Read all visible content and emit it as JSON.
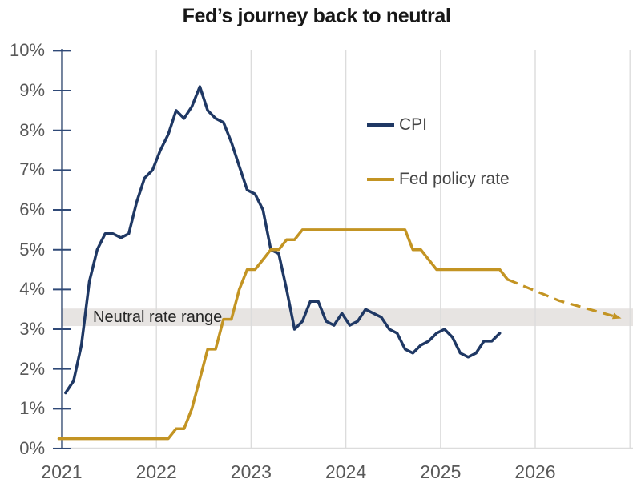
{
  "title": "Fed’s journey back to neutral",
  "legend": {
    "cpi_label": "CPI",
    "fed_label": "Fed policy rate"
  },
  "colors": {
    "cpi_line": "#1F3864",
    "fed_line": "#C39423",
    "band_fill": "#E7E4E2",
    "gridline": "#DCDCDC",
    "axis_line": "#1F3864",
    "tick_mark": "#2F4977",
    "tick_label": "#595959",
    "legend_text": "#454545",
    "band_label_text": "#262626",
    "title_text": "#171717"
  },
  "chart_data": {
    "type": "line",
    "title": "Fed’s journey back to neutral",
    "xlabel": "",
    "ylabel": "",
    "grid": "vertical-year-gridlines-only",
    "legend_position": "inside-upper-right",
    "x_axis": {
      "labels": [
        "2021",
        "2022",
        "2023",
        "2024",
        "2025",
        "2026"
      ],
      "gridline_years": [
        2021,
        2022,
        2023,
        2024,
        2025,
        2026,
        2027
      ],
      "range": [
        2020.95,
        2027.03
      ]
    },
    "y_axis": {
      "tick_labels": [
        "0%",
        "1%",
        "2%",
        "3%",
        "4%",
        "5%",
        "6%",
        "7%",
        "8%",
        "9%",
        "10%"
      ],
      "range": [
        0,
        10
      ],
      "tick_step": 1,
      "unit": "percent"
    },
    "band": {
      "label": "Neutral rate range",
      "from": 3.08,
      "to": 3.52
    },
    "series": [
      {
        "name": "CPI",
        "color": "#1F3864",
        "start_year": 2021,
        "start_month": 1,
        "frequency": "monthly",
        "values": [
          1.4,
          1.7,
          2.6,
          4.2,
          5.0,
          5.4,
          5.4,
          5.3,
          5.4,
          6.2,
          6.8,
          7.0,
          7.5,
          7.9,
          8.5,
          8.3,
          8.6,
          9.1,
          8.5,
          8.3,
          8.2,
          7.7,
          7.1,
          6.5,
          6.4,
          6.0,
          5.0,
          4.9,
          4.0,
          3.0,
          3.2,
          3.7,
          3.7,
          3.2,
          3.1,
          3.4,
          3.1,
          3.2,
          3.5,
          3.4,
          3.3,
          3.0,
          2.9,
          2.5,
          2.4,
          2.6,
          2.7,
          2.9,
          3.0,
          2.8,
          2.4,
          2.3,
          2.4,
          2.7,
          2.7,
          2.9
        ]
      },
      {
        "name": "Fed policy rate",
        "color": "#C39423",
        "start_year": 2021,
        "start_month": 1,
        "frequency": "monthly",
        "extend_left_to": 2020.97,
        "values": [
          0.25,
          0.25,
          0.25,
          0.25,
          0.25,
          0.25,
          0.25,
          0.25,
          0.25,
          0.25,
          0.25,
          0.25,
          0.25,
          0.25,
          0.5,
          0.5,
          1.0,
          1.75,
          2.5,
          2.5,
          3.25,
          3.25,
          4.0,
          4.5,
          4.5,
          4.75,
          5.0,
          5.0,
          5.25,
          5.25,
          5.5,
          5.5,
          5.5,
          5.5,
          5.5,
          5.5,
          5.5,
          5.5,
          5.5,
          5.5,
          5.5,
          5.5,
          5.5,
          5.5,
          5.0,
          5.0,
          4.75,
          4.5,
          4.5,
          4.5,
          4.5,
          4.5,
          4.5,
          4.5,
          4.5,
          4.5,
          4.25
        ]
      }
    ],
    "projection": {
      "series": "Fed policy rate",
      "style": "dashed-with-arrow",
      "points": [
        [
          2025.71,
          4.25
        ],
        [
          2026.25,
          3.72
        ],
        [
          2026.87,
          3.3
        ]
      ]
    }
  }
}
